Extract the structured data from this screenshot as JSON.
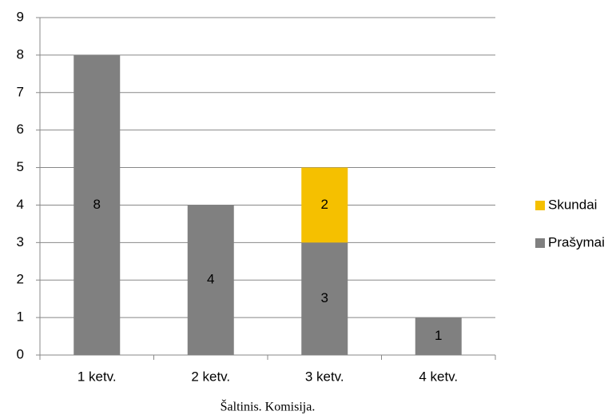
{
  "chart_data": {
    "type": "stacked_bar",
    "categories": [
      "1 ketv.",
      "2 ketv.",
      "3 ketv.",
      "4 ketv."
    ],
    "series": [
      {
        "name": "Prašymai",
        "color": "#808080",
        "values": [
          8,
          4,
          3,
          1
        ]
      },
      {
        "name": "Skundai",
        "color": "#f5c000",
        "values": [
          null,
          null,
          2,
          null
        ]
      }
    ],
    "ylim": [
      0,
      9
    ],
    "yticks": [
      0,
      1,
      2,
      3,
      4,
      5,
      6,
      7,
      8,
      9
    ],
    "grid": true,
    "legend": "right",
    "source": "Šaltinis. Komisija."
  }
}
